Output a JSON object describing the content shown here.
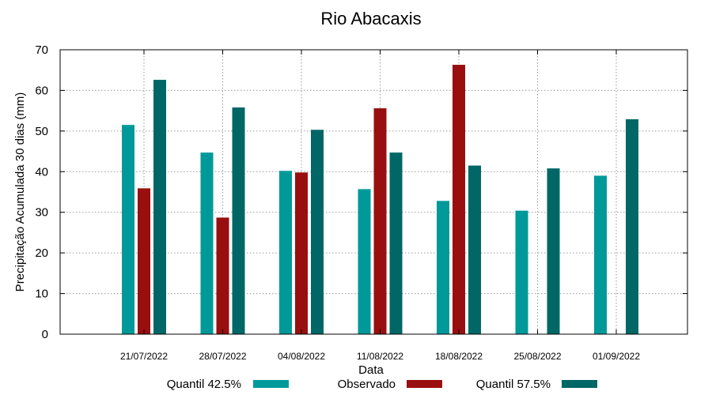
{
  "chart_data": {
    "type": "bar",
    "title": "Rio Abacaxis",
    "xlabel": "Data",
    "ylabel": "Precipitação Acumulada 30 dias (mm)",
    "ylim": [
      0,
      70
    ],
    "yticks": [
      0,
      10,
      20,
      30,
      40,
      50,
      60,
      70
    ],
    "grid": true,
    "categories": [
      "21/07/2022",
      "28/07/2022",
      "04/08/2022",
      "11/08/2022",
      "18/08/2022",
      "25/08/2022",
      "01/09/2022"
    ],
    "series": [
      {
        "name": "Quantil 42.5%",
        "color": "#009999",
        "values": [
          51.5,
          44.7,
          40.2,
          35.7,
          32.8,
          30.4,
          39.0
        ]
      },
      {
        "name": "Observado",
        "color": "#990f0f",
        "values": [
          35.9,
          28.7,
          39.8,
          55.6,
          66.3,
          null,
          null
        ]
      },
      {
        "name": "Quantil 57.5%",
        "color": "#006666",
        "values": [
          62.6,
          55.8,
          50.3,
          44.7,
          41.5,
          40.8,
          52.9
        ]
      }
    ],
    "legend_position": "bottom"
  }
}
